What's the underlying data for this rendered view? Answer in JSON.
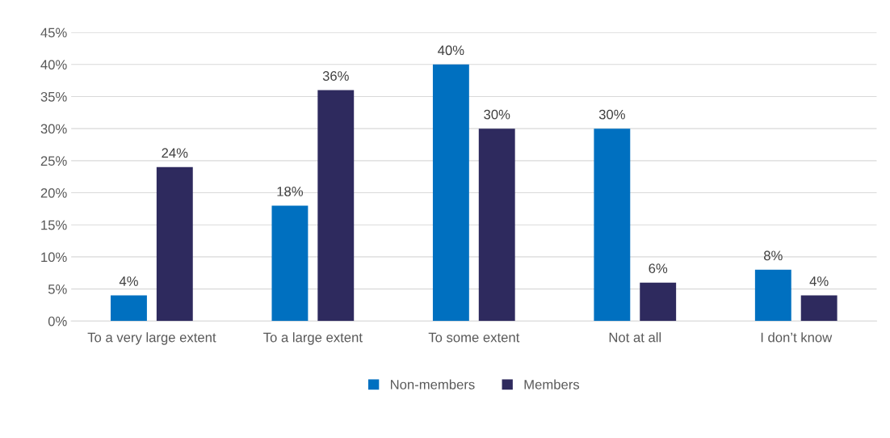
{
  "chart_data": {
    "type": "bar",
    "categories": [
      "To a very large extent",
      "To a large extent",
      "To some extent",
      "Not at all",
      "I don’t know"
    ],
    "series": [
      {
        "name": "Non-members",
        "color": "#0070c0",
        "values": [
          4,
          18,
          40,
          30,
          8
        ],
        "value_labels": [
          "4%",
          "18%",
          "40%",
          "30%",
          "8%"
        ]
      },
      {
        "name": "Members",
        "color": "#2e2a5e",
        "values": [
          24,
          36,
          30,
          6,
          4
        ],
        "value_labels": [
          "24%",
          "36%",
          "30%",
          "6%",
          "4%"
        ]
      }
    ],
    "ylim": [
      0,
      45
    ],
    "yticks": [
      {
        "value": 0,
        "label": "0%"
      },
      {
        "value": 5,
        "label": "5%"
      },
      {
        "value": 10,
        "label": "10%"
      },
      {
        "value": 15,
        "label": "15%"
      },
      {
        "value": 20,
        "label": "20%"
      },
      {
        "value": 25,
        "label": "25%"
      },
      {
        "value": 30,
        "label": "30%"
      },
      {
        "value": 35,
        "label": "35%"
      },
      {
        "value": 40,
        "label": "40%"
      },
      {
        "value": 45,
        "label": "45%"
      }
    ],
    "grid": "y",
    "legend": "bottom"
  }
}
